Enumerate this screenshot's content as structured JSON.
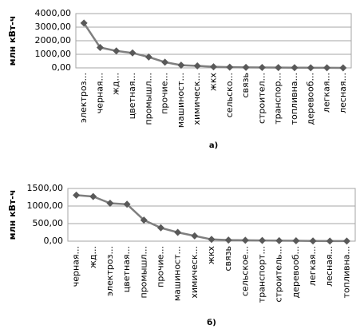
{
  "chart_data": [
    {
      "type": "line",
      "y_label": "млн кВт-ч",
      "caption": "а)",
      "categories": [
        "электроз...",
        "черная...",
        "жд...",
        "цветная...",
        "промышл...",
        "прочие...",
        "машиност...",
        "химическ...",
        "жкх",
        "сельско...",
        "связь",
        "строител...",
        "транспор...",
        "топливна...",
        "деревооб...",
        "легкая...",
        "лесная..."
      ],
      "values": [
        3300,
        1500,
        1250,
        1100,
        800,
        420,
        200,
        150,
        80,
        50,
        40,
        30,
        20,
        15,
        10,
        5,
        3
      ],
      "color": "#7f7f7f",
      "marker_color": "#595959",
      "ylim": [
        0,
        4000
      ],
      "yticks": [
        {
          "value": 0,
          "label": "0,00"
        },
        {
          "value": 1000,
          "label": "1000,00"
        },
        {
          "value": 2000,
          "label": "2000,00"
        },
        {
          "value": 3000,
          "label": "3000,00"
        },
        {
          "value": 4000,
          "label": "4000,00"
        }
      ],
      "grid": true
    },
    {
      "type": "line",
      "y_label": "млн кВт-ч",
      "caption": "б)",
      "categories": [
        "черная...",
        "жд...",
        "электроз...",
        "цветная...",
        "промышл...",
        "прочие...",
        "машиност...",
        "химическ...",
        "жкх",
        "связь",
        "сельское...",
        "транспорт...",
        "строитель...",
        "деревооб...",
        "легкая...",
        "лесная...",
        "топливна..."
      ],
      "values": [
        1310,
        1270,
        1080,
        1050,
        600,
        380,
        250,
        150,
        50,
        30,
        25,
        20,
        15,
        10,
        5,
        3,
        2
      ],
      "color": "#7f7f7f",
      "marker_color": "#595959",
      "ylim": [
        0,
        1500
      ],
      "yticks": [
        {
          "value": 0,
          "label": "0,00"
        },
        {
          "value": 500,
          "label": "500,00"
        },
        {
          "value": 1000,
          "label": "1000,00"
        },
        {
          "value": 1500,
          "label": "1500,00"
        }
      ],
      "grid": true
    }
  ]
}
